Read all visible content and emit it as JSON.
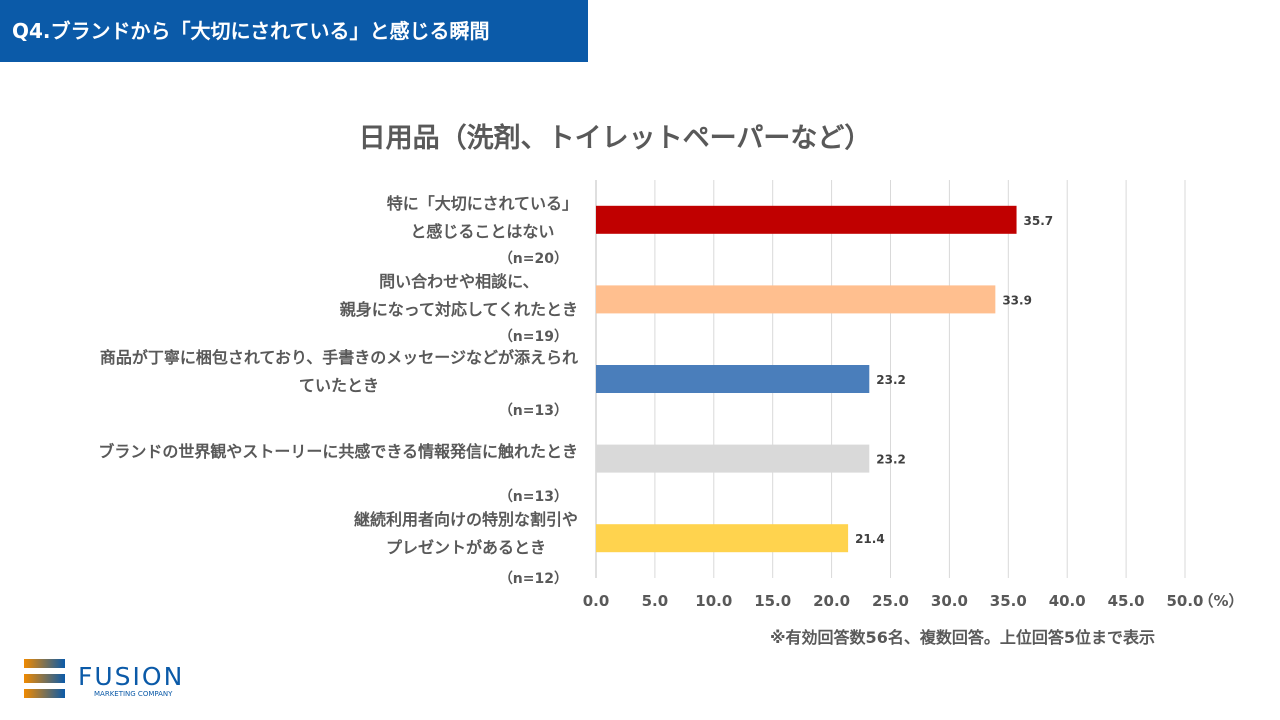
{
  "header": {
    "title": "Q4.ブランドから「大切にされている」と感じる瞬間"
  },
  "chart_data": {
    "type": "bar",
    "orientation": "horizontal",
    "title": "日用品（洗剤、トイレットペーパーなど）",
    "categories": [
      {
        "lines": [
          "特に「大切にされている」",
          "と感じることはない"
        ],
        "n": "（n=20）"
      },
      {
        "lines": [
          "問い合わせや相談に、",
          "親身になって対応してくれたとき"
        ],
        "n": "（n=19）"
      },
      {
        "lines": [
          "商品が丁寧に梱包されており、手書きのメッセージなどが添えられ",
          "ていたとき"
        ],
        "n": "（n=13）"
      },
      {
        "lines": [
          "ブランドの世界観やストーリーに共感できる情報発信に触れたとき"
        ],
        "n": "（n=13）"
      },
      {
        "lines": [
          "継続利用者向けの特別な割引や",
          "プレゼントがあるとき"
        ],
        "n": "（n=12）"
      }
    ],
    "values": [
      35.7,
      33.9,
      23.2,
      23.2,
      21.4
    ],
    "data_labels": [
      "35.7",
      "33.9",
      "23.2",
      "23.2",
      "21.4"
    ],
    "colors": [
      "#c00000",
      "#ffbf8f",
      "#4a7ebb",
      "#d9d9d9",
      "#ffd34e"
    ],
    "xlim": [
      0,
      50
    ],
    "ticks": [
      "0.0",
      "5.0",
      "10.0",
      "15.0",
      "20.0",
      "25.0",
      "30.0",
      "35.0",
      "40.0",
      "45.0",
      "50.0"
    ],
    "unit": "（%）",
    "grid": true
  },
  "note": "※有効回答数56名、複数回答。上位回答5位まで表示",
  "logo": {
    "name": "FUSION",
    "sub": "MARKETING COMPANY"
  }
}
